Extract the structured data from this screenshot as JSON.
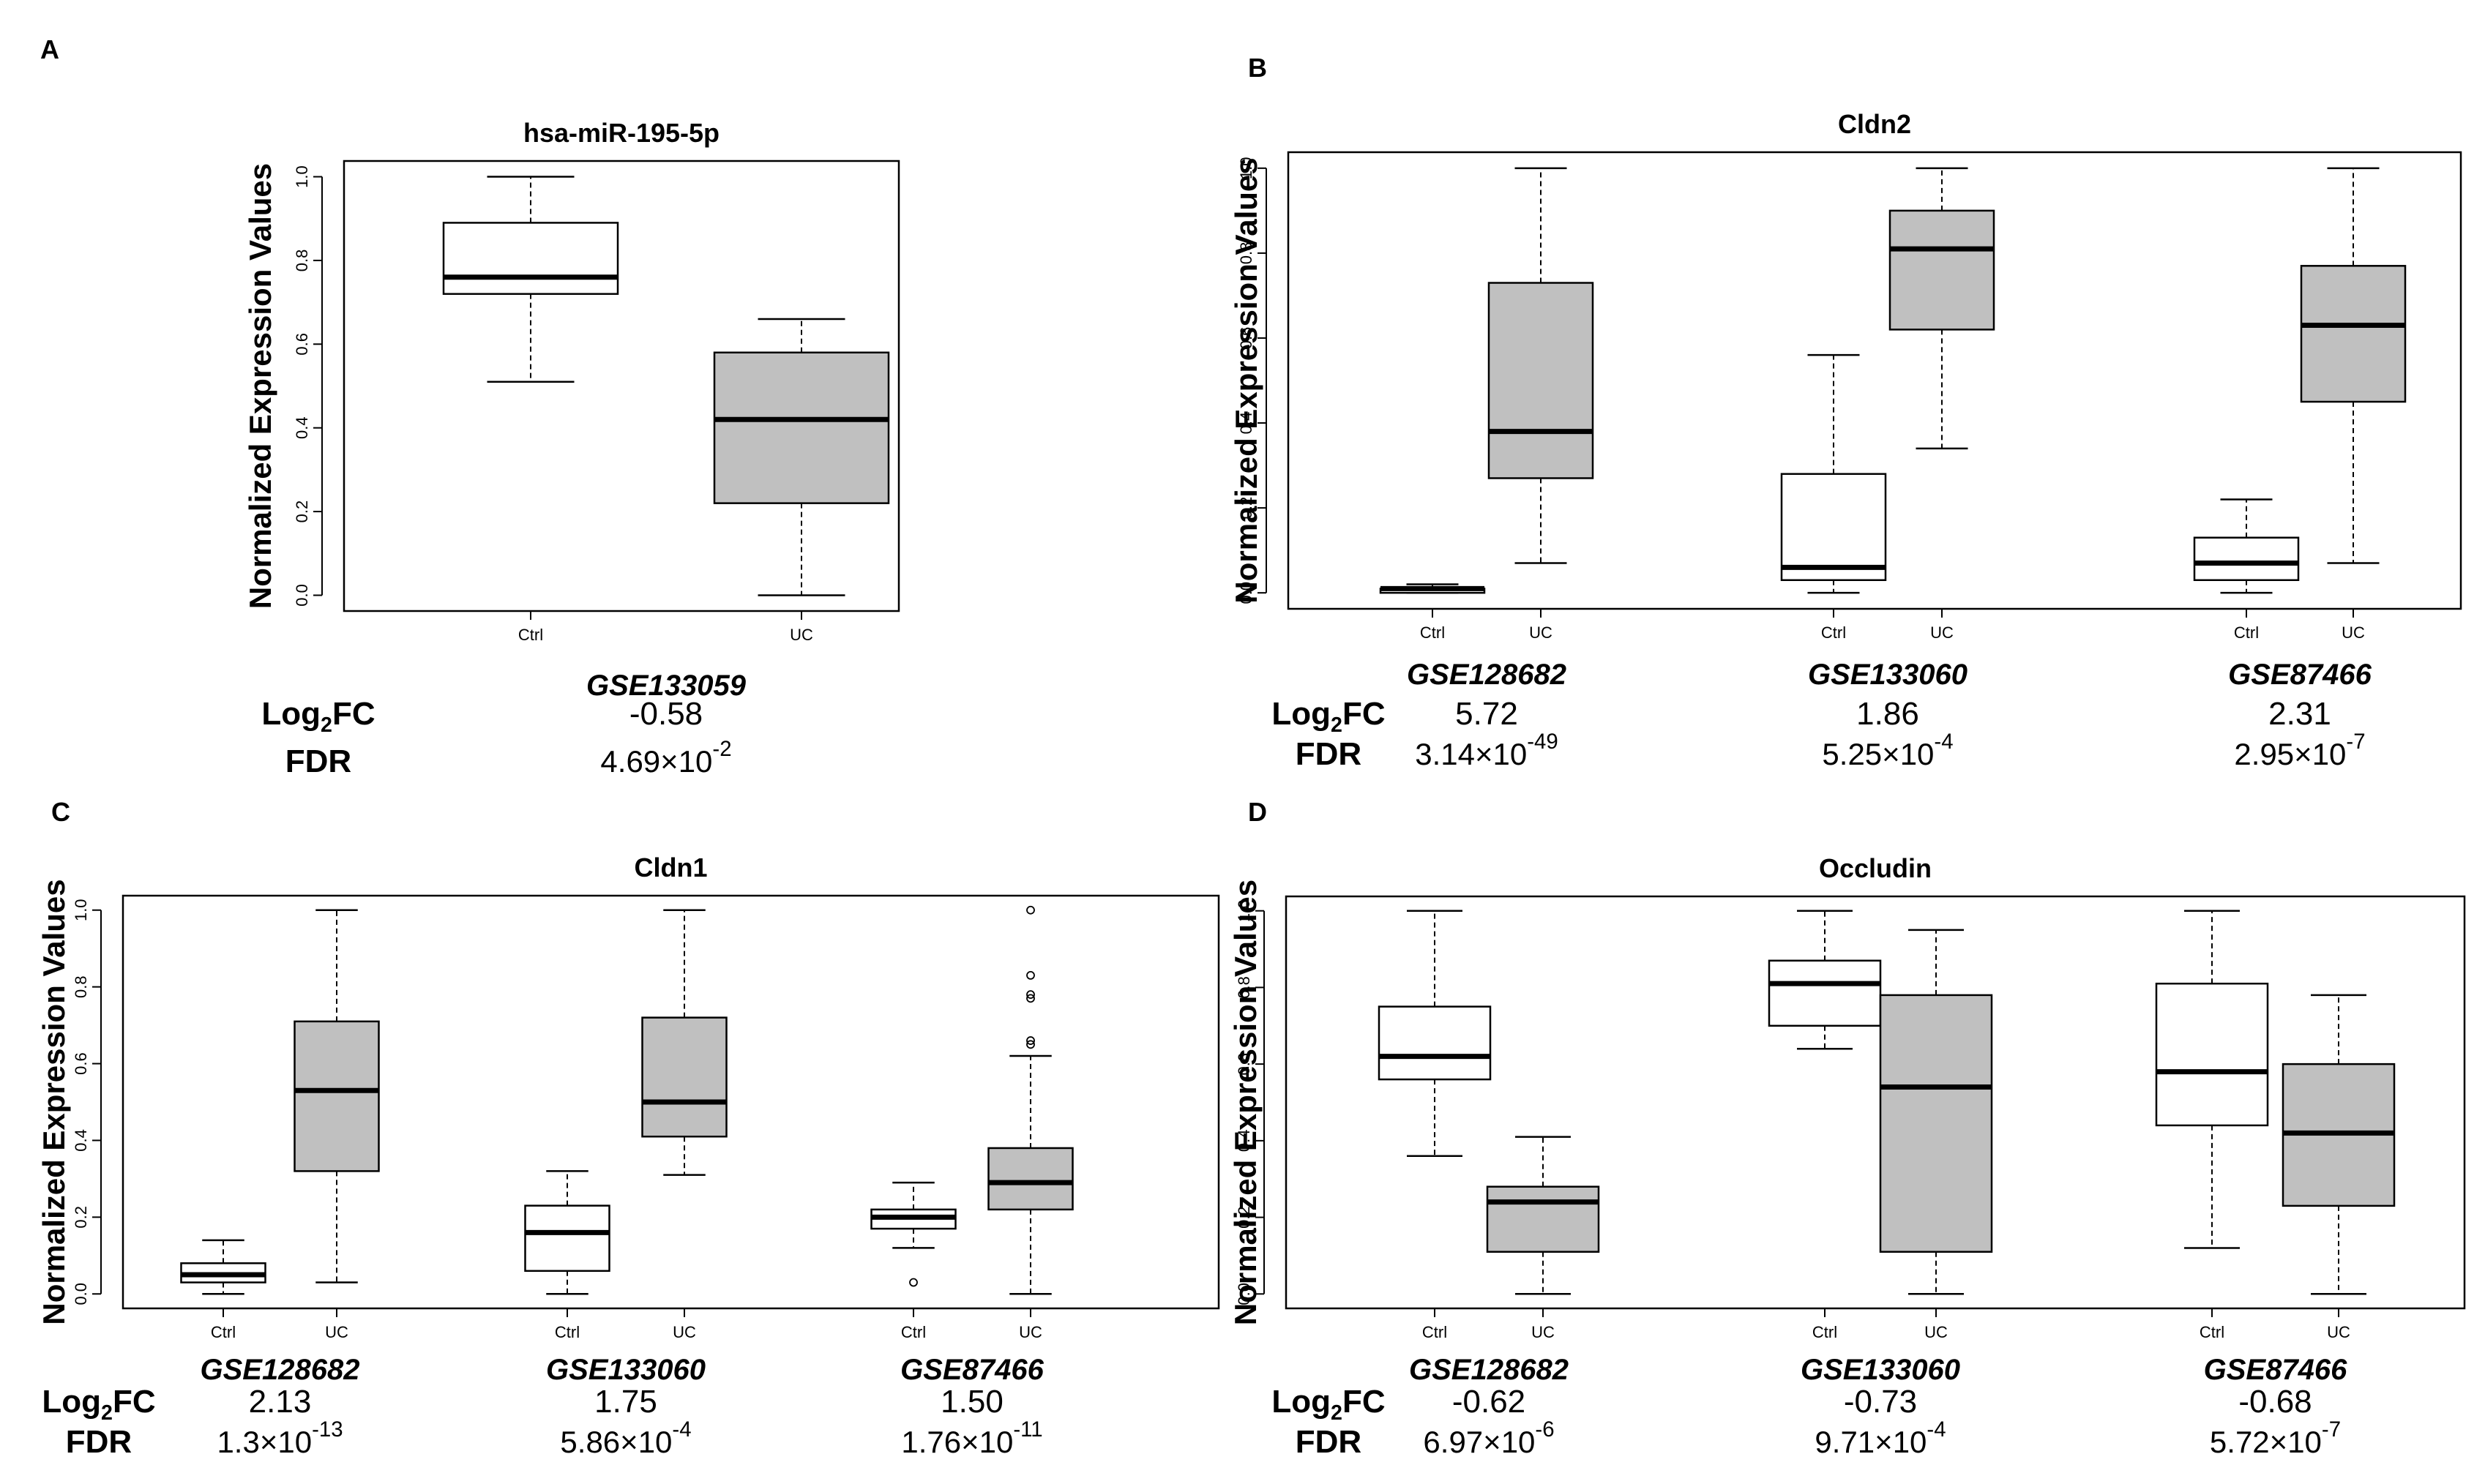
{
  "colors": {
    "ctrl_fill": "#ffffff",
    "uc_fill": "#c0c0c0",
    "stroke": "#000000",
    "background": "#ffffff"
  },
  "chart_data": [
    {
      "panel": "A",
      "type": "box",
      "title": "hsa-miR-195-5p",
      "ylabel": "Normalized Expression Values",
      "ylim": [
        0,
        1
      ],
      "yticks": [
        "0.0",
        "0.2",
        "0.4",
        "0.6",
        "0.8",
        "1.0"
      ],
      "stat_labels": [
        "Log2FC",
        "FDR"
      ],
      "datasets": [
        {
          "name": "GSE133059",
          "log2fc": "-0.58",
          "fdr_mant": "4.69",
          "fdr_exp": "-2",
          "boxes": [
            {
              "group": "Ctrl",
              "min": 0.51,
              "q1": 0.72,
              "median": 0.76,
              "q3": 0.89,
              "max": 1.0,
              "outliers": []
            },
            {
              "group": "UC",
              "min": 0.0,
              "q1": 0.22,
              "median": 0.42,
              "q3": 0.58,
              "max": 0.66,
              "outliers": []
            }
          ]
        }
      ]
    },
    {
      "panel": "B",
      "type": "box",
      "title": "Cldn2",
      "ylabel": "Normalized Expression Values",
      "ylim": [
        0,
        1
      ],
      "yticks": [
        "0.0",
        "0.2",
        "0.4",
        "0.6",
        "0.8",
        "1.0"
      ],
      "stat_labels": [
        "Log2FC",
        "FDR"
      ],
      "datasets": [
        {
          "name": "GSE128682",
          "log2fc": "5.72",
          "fdr_mant": "3.14",
          "fdr_exp": "-49",
          "boxes": [
            {
              "group": "Ctrl",
              "min": 0.0,
              "q1": 0.0,
              "median": 0.01,
              "q3": 0.01,
              "max": 0.02,
              "outliers": []
            },
            {
              "group": "UC",
              "min": 0.07,
              "q1": 0.27,
              "median": 0.38,
              "q3": 0.73,
              "max": 1.0,
              "outliers": []
            }
          ]
        },
        {
          "name": "GSE133060",
          "log2fc": "1.86",
          "fdr_mant": "5.25",
          "fdr_exp": "-4",
          "boxes": [
            {
              "group": "Ctrl",
              "min": 0.0,
              "q1": 0.03,
              "median": 0.06,
              "q3": 0.28,
              "max": 0.56,
              "outliers": []
            },
            {
              "group": "UC",
              "min": 0.34,
              "q1": 0.62,
              "median": 0.81,
              "q3": 0.9,
              "max": 1.0,
              "outliers": []
            }
          ]
        },
        {
          "name": "GSE87466",
          "log2fc": "2.31",
          "fdr_mant": "2.95",
          "fdr_exp": "-7",
          "boxes": [
            {
              "group": "Ctrl",
              "min": 0.0,
              "q1": 0.03,
              "median": 0.07,
              "q3": 0.13,
              "max": 0.22,
              "outliers": []
            },
            {
              "group": "UC",
              "min": 0.07,
              "q1": 0.45,
              "median": 0.63,
              "q3": 0.77,
              "max": 1.0,
              "outliers": []
            }
          ]
        }
      ]
    },
    {
      "panel": "C",
      "type": "box",
      "title": "Cldn1",
      "ylabel": "Normalized Expression Values",
      "ylim": [
        0,
        1
      ],
      "yticks": [
        "0.0",
        "0.2",
        "0.4",
        "0.6",
        "0.8",
        "1.0"
      ],
      "stat_labels": [
        "Log2FC",
        "FDR"
      ],
      "datasets": [
        {
          "name": "GSE128682",
          "log2fc": "2.13",
          "fdr_mant": "1.3",
          "fdr_exp": "-13",
          "boxes": [
            {
              "group": "Ctrl",
              "min": 0.0,
              "q1": 0.03,
              "median": 0.05,
              "q3": 0.08,
              "max": 0.14,
              "outliers": []
            },
            {
              "group": "UC",
              "min": 0.03,
              "q1": 0.32,
              "median": 0.53,
              "q3": 0.71,
              "max": 1.0,
              "outliers": []
            }
          ]
        },
        {
          "name": "GSE133060",
          "log2fc": "1.75",
          "fdr_mant": "5.86",
          "fdr_exp": "-4",
          "boxes": [
            {
              "group": "Ctrl",
              "min": 0.0,
              "q1": 0.06,
              "median": 0.16,
              "q3": 0.23,
              "max": 0.32,
              "outliers": []
            },
            {
              "group": "UC",
              "min": 0.31,
              "q1": 0.41,
              "median": 0.5,
              "q3": 0.72,
              "max": 1.0,
              "outliers": []
            }
          ]
        },
        {
          "name": "GSE87466",
          "log2fc": "1.50",
          "fdr_mant": "1.76",
          "fdr_exp": "-11",
          "boxes": [
            {
              "group": "Ctrl",
              "min": 0.12,
              "q1": 0.17,
              "median": 0.2,
              "q3": 0.22,
              "max": 0.29,
              "outliers": [
                0.03
              ]
            },
            {
              "group": "UC",
              "min": 0.0,
              "q1": 0.22,
              "median": 0.29,
              "q3": 0.38,
              "max": 0.62,
              "outliers": [
                0.65,
                0.66,
                0.77,
                0.78,
                0.83,
                1.0
              ]
            }
          ]
        }
      ]
    },
    {
      "panel": "D",
      "type": "box",
      "title": "Occludin",
      "ylabel": "Normalized Expression Values",
      "ylim": [
        0,
        1
      ],
      "yticks": [
        "0.0",
        "0.2",
        "0.4",
        "0.6",
        "0.8",
        "1.0"
      ],
      "stat_labels": [
        "Log2FC",
        "FDR"
      ],
      "datasets": [
        {
          "name": "GSE128682",
          "log2fc": "-0.62",
          "fdr_mant": "6.97",
          "fdr_exp": "-6",
          "boxes": [
            {
              "group": "Ctrl",
              "min": 0.36,
              "q1": 0.56,
              "median": 0.62,
              "q3": 0.75,
              "max": 1.0,
              "outliers": []
            },
            {
              "group": "UC",
              "min": 0.0,
              "q1": 0.11,
              "median": 0.24,
              "q3": 0.28,
              "max": 0.41,
              "outliers": []
            }
          ]
        },
        {
          "name": "GSE133060",
          "log2fc": "-0.73",
          "fdr_mant": "9.71",
          "fdr_exp": "-4",
          "boxes": [
            {
              "group": "Ctrl",
              "min": 0.64,
              "q1": 0.7,
              "median": 0.81,
              "q3": 0.87,
              "max": 1.0,
              "outliers": []
            },
            {
              "group": "UC",
              "min": 0.0,
              "q1": 0.11,
              "median": 0.54,
              "q3": 0.78,
              "max": 0.95,
              "outliers": []
            }
          ]
        },
        {
          "name": "GSE87466",
          "log2fc": "-0.68",
          "fdr_mant": "5.72",
          "fdr_exp": "-7",
          "boxes": [
            {
              "group": "Ctrl",
              "min": 0.12,
              "q1": 0.44,
              "median": 0.58,
              "q3": 0.81,
              "max": 1.0,
              "outliers": []
            },
            {
              "group": "UC",
              "min": 0.0,
              "q1": 0.23,
              "median": 0.42,
              "q3": 0.6,
              "max": 0.78,
              "outliers": []
            }
          ]
        }
      ]
    }
  ]
}
